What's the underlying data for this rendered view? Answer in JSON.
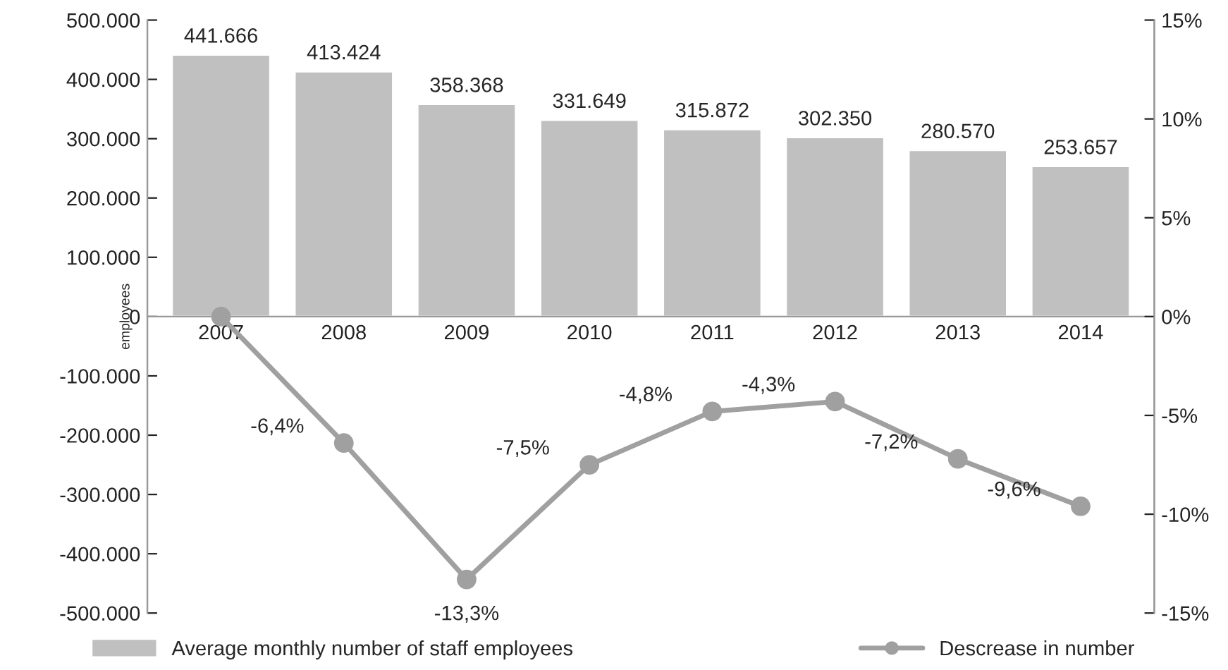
{
  "chart_data": {
    "type": "bar",
    "ylabel": "employees",
    "categories": [
      "2007",
      "2008",
      "2009",
      "2010",
      "2011",
      "2012",
      "2013",
      "2014"
    ],
    "series": [
      {
        "name": "Average monthly number of staff employees",
        "color": "#c0c0c0",
        "values": [
          441666,
          413424,
          358368,
          331649,
          315872,
          302350,
          280570,
          253657
        ],
        "value_labels": [
          "441.666",
          "413.424",
          "358.368",
          "331.649",
          "315.872",
          "302.350",
          "280.570",
          "253.657"
        ]
      },
      {
        "name": "Descrease in number",
        "type": "line",
        "axis": "y2",
        "color": "#a0a0a0",
        "marker": "circle",
        "values": [
          0,
          -6.4,
          -13.3,
          -7.5,
          -4.8,
          -4.3,
          -7.2,
          -9.6
        ],
        "value_labels": [
          null,
          "-6,4%",
          "-13,3%",
          "-7,5%",
          "-4,8%",
          "-4,3%",
          "-7,2%",
          "-9,6%"
        ]
      }
    ],
    "ylim": [
      -500000,
      500000
    ],
    "yticks": [
      {
        "value": -500000,
        "label": "-500.000"
      },
      {
        "value": -400000,
        "label": "-400.000"
      },
      {
        "value": -300000,
        "label": "-300.000"
      },
      {
        "value": -200000,
        "label": "-200.000"
      },
      {
        "value": -100000,
        "label": "-100.000"
      },
      0,
      {
        "value": 100000,
        "label": "100.000"
      },
      {
        "value": 200000,
        "label": "200.000"
      },
      {
        "value": 300000,
        "label": "300.000"
      },
      {
        "value": 400000,
        "label": "400.000"
      },
      {
        "value": 500000,
        "label": "500.000"
      }
    ],
    "y2lim": [
      -15,
      15
    ],
    "y2ticks": [
      {
        "value": -15,
        "label": "-15%"
      },
      {
        "value": -10,
        "label": "-10%"
      },
      {
        "value": -5,
        "label": "-5%"
      },
      {
        "value": 0,
        "label": "0%"
      },
      {
        "value": 5,
        "label": "5%"
      },
      {
        "value": 10,
        "label": "10%"
      },
      {
        "value": 15,
        "label": "15%"
      }
    ],
    "grid": false,
    "legend": "bottom"
  }
}
